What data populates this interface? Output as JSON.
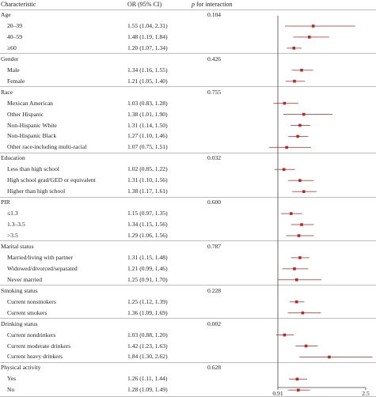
{
  "headers": {
    "characteristic": "Characteristic",
    "or_ci": "OR (95% CI)",
    "p_interaction_p": "p",
    "p_interaction_rest": " for interaction"
  },
  "chart_data": {
    "type": "forest",
    "x_axis": {
      "ticks": [
        "0.91",
        "2.5"
      ],
      "xlim": [
        0.91,
        2.5
      ],
      "reference_line": 0.91
    },
    "groups": [
      {
        "label": "Age",
        "p": "0.104",
        "rows": [
          {
            "label": "20–39",
            "or": 1.55,
            "lo": 1.04,
            "hi": 2.31,
            "text": "1.55 (1.04, 2.31)"
          },
          {
            "label": "40–59",
            "or": 1.48,
            "lo": 1.19,
            "hi": 1.84,
            "text": "1.48 (1.19, 1.84)"
          },
          {
            "label": "≥60",
            "or": 1.2,
            "lo": 1.07,
            "hi": 1.34,
            "text": "1.20 (1.07, 1.34)"
          }
        ]
      },
      {
        "label": "Gender",
        "p": "0.426",
        "rows": [
          {
            "label": "Male",
            "or": 1.34,
            "lo": 1.16,
            "hi": 1.55,
            "text": "1.34 (1.16, 1.55)"
          },
          {
            "label": "Female",
            "or": 1.21,
            "lo": 1.05,
            "hi": 1.4,
            "text": "1.21 (1.05, 1.40)"
          }
        ]
      },
      {
        "label": "Race",
        "p": "0.755",
        "rows": [
          {
            "label": "Mexican American",
            "or": 1.03,
            "lo": 0.83,
            "hi": 1.28,
            "text": "1.03 (0.83, 1.28)"
          },
          {
            "label": "Other Hispanic",
            "or": 1.38,
            "lo": 1.01,
            "hi": 1.9,
            "text": "1.38 (1.01, 1.90)"
          },
          {
            "label": "Non-Hispanic White",
            "or": 1.31,
            "lo": 1.14,
            "hi": 1.5,
            "text": "1.31 (1.14, 1.50)"
          },
          {
            "label": "Non-Hispanic Black",
            "or": 1.27,
            "lo": 1.1,
            "hi": 1.46,
            "text": "1.27 (1.10, 1.46)"
          },
          {
            "label": "Other race-including multi-racial",
            "or": 1.07,
            "lo": 0.75,
            "hi": 1.51,
            "text": "1.07 (0.75, 1.51)"
          }
        ]
      },
      {
        "label": "Education",
        "p": "0.032",
        "rows": [
          {
            "label": "Less than high school",
            "or": 1.02,
            "lo": 0.85,
            "hi": 1.22,
            "text": "1.02 (0.85, 1.22)"
          },
          {
            "label": "High school grad/GED or equivalent",
            "or": 1.31,
            "lo": 1.1,
            "hi": 1.56,
            "text": "1.31 (1.10, 1.56)"
          },
          {
            "label": "Higher than high school",
            "or": 1.38,
            "lo": 1.17,
            "hi": 1.61,
            "text": "1.38 (1.17, 1.61)"
          }
        ]
      },
      {
        "label": "PIR",
        "p": "0.600",
        "rows": [
          {
            "label": "≤1.3",
            "or": 1.15,
            "lo": 0.97,
            "hi": 1.35,
            "text": "1.15 (0.97, 1.35)"
          },
          {
            "label": "1.3–3.5",
            "or": 1.34,
            "lo": 1.15,
            "hi": 1.56,
            "text": "1.34 (1.15, 1.56)"
          },
          {
            "label": ">3.5",
            "or": 1.29,
            "lo": 1.06,
            "hi": 1.56,
            "text": "1.29 (1.06, 1.56)"
          }
        ]
      },
      {
        "label": "Marital status",
        "p": "0.787",
        "rows": [
          {
            "label": "Married/living with partner",
            "or": 1.31,
            "lo": 1.15,
            "hi": 1.48,
            "text": "1.31 (1.15, 1.48)"
          },
          {
            "label": "Widowed/divorced/separated",
            "or": 1.21,
            "lo": 0.99,
            "hi": 1.46,
            "text": "1.21 (0.99, 1.46)"
          },
          {
            "label": "Never married",
            "or": 1.25,
            "lo": 0.91,
            "hi": 1.7,
            "text": "1.25 (0.91, 1.70)"
          }
        ]
      },
      {
        "label": "Smoking status",
        "p": "0.228",
        "rows": [
          {
            "label": "Current nonsmokers",
            "or": 1.25,
            "lo": 1.12,
            "hi": 1.39,
            "text": "1.25 (1.12, 1.39)"
          },
          {
            "label": "Current smokers",
            "or": 1.36,
            "lo": 1.09,
            "hi": 1.69,
            "text": "1.36 (1.09, 1.69)"
          }
        ]
      },
      {
        "label": "Drinking status",
        "p": "0.002",
        "rows": [
          {
            "label": "Current nondrinkers",
            "or": 1.03,
            "lo": 0.88,
            "hi": 1.2,
            "text": "1.03 (0.88, 1.20)"
          },
          {
            "label": "Current moderate drinkers",
            "or": 1.42,
            "lo": 1.23,
            "hi": 1.63,
            "text": "1.42 (1.23, 1.63)"
          },
          {
            "label": "Current heavy drinkers",
            "or": 1.84,
            "lo": 1.3,
            "hi": 2.62,
            "text": "1.84 (1.30, 2.62)"
          }
        ]
      },
      {
        "label": "Physical activity",
        "p": "0.628",
        "rows": [
          {
            "label": "Yes",
            "or": 1.26,
            "lo": 1.11,
            "hi": 1.44,
            "text": "1.26 (1.11, 1.44)"
          },
          {
            "label": "No",
            "or": 1.28,
            "lo": 1.09,
            "hi": 1.49,
            "text": "1.28 (1.09, 1.49)"
          }
        ]
      }
    ]
  },
  "colors": {
    "point": "#b52a2a",
    "ci_line": "#c15a5a",
    "axis": "#444444",
    "separator": "#bdbdbd"
  }
}
